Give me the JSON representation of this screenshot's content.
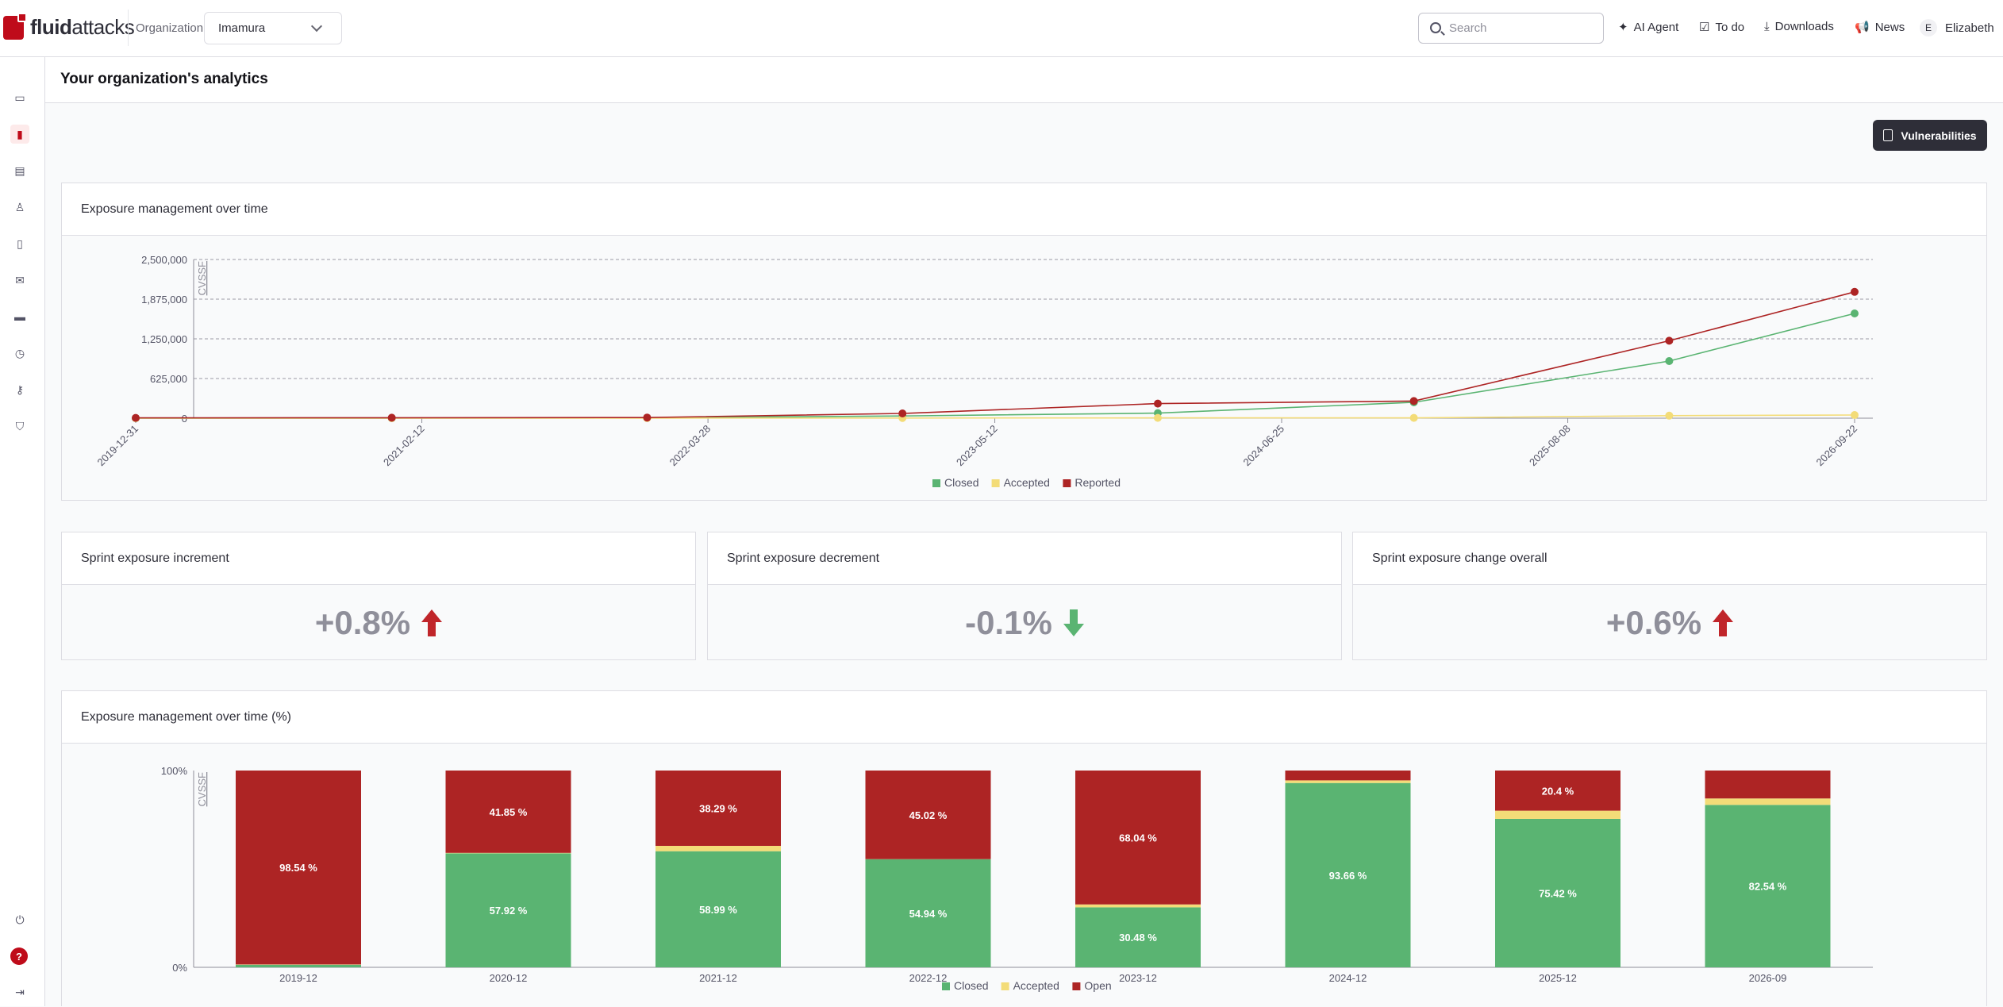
{
  "brand": {
    "name_bold": "fluid",
    "name_rest": "attacks"
  },
  "top": {
    "org_label": "Organization",
    "org_value": "Imamura",
    "search_placeholder": "Search",
    "nav": [
      "AI Agent",
      "To do",
      "Downloads",
      "News"
    ],
    "user_initial": "E",
    "user_name": "Elizabeth"
  },
  "sidebar": {
    "icons": [
      "folder-icon",
      "chart-icon",
      "briefcase-icon",
      "user-plus-icon",
      "file-check-icon",
      "mail-icon",
      "credit-card-icon",
      "clock-icon",
      "key-icon",
      "shield-icon"
    ],
    "active": "chart-icon"
  },
  "page": {
    "title": "Your organization's analytics",
    "export_button": "Vulnerabilities"
  },
  "cards": {
    "line_title": "Exposure management over time",
    "inc_title": "Sprint exposure increment",
    "inc_value": "+0.8%",
    "dec_title": "Sprint exposure decrement",
    "dec_value": "-0.1%",
    "overall_title": "Sprint exposure change overall",
    "overall_value": "+0.6%",
    "bar_title": "Exposure management over time (%)"
  },
  "colors": {
    "closed": "#5ab472",
    "accepted": "#f3dc78",
    "reported": "#ad2424",
    "accent": "#bf0b1a"
  },
  "chart_data": [
    {
      "type": "line",
      "ylabel": "CVSSF",
      "ylim": [
        0,
        2500000
      ],
      "y_ticks": [
        "2,500,000",
        "1,875,000",
        "1,250,000",
        "625,000",
        "0"
      ],
      "x_ticks": [
        "2019-12-31",
        "2021-02-12",
        "2022-03-28",
        "2023-05-12",
        "2024-06-25",
        "2025-08-08",
        "2026-09-22"
      ],
      "x": [
        "2019-12-31",
        "2020-12-31",
        "2021-12-31",
        "2022-12-31",
        "2023-12-31",
        "2024-12-31",
        "2025-12-31",
        "2026-09-22"
      ],
      "series": [
        {
          "name": "Closed",
          "values": [
            0,
            1000,
            5000,
            35000,
            80000,
            250000,
            900000,
            1650000
          ]
        },
        {
          "name": "Accepted",
          "values": [
            0,
            0,
            1000,
            3000,
            5000,
            5000,
            40000,
            50000
          ]
        },
        {
          "name": "Reported",
          "values": [
            5000,
            8000,
            10000,
            75000,
            230000,
            270000,
            1220000,
            1990000
          ]
        }
      ],
      "legend": [
        "Closed",
        "Accepted",
        "Reported"
      ],
      "legend_position": "bottom-center"
    },
    {
      "type": "bar",
      "stacked": true,
      "ylabel": "CVSSF",
      "y_ticks": [
        "100%",
        "0%"
      ],
      "categories": [
        "2019-12",
        "2020-12",
        "2021-12",
        "2022-12",
        "2023-12",
        "2024-12",
        "2025-12",
        "2026-09"
      ],
      "series": [
        {
          "name": "Closed",
          "values": [
            1.3,
            57.92,
            58.99,
            54.94,
            30.48,
            93.66,
            75.42,
            82.54
          ]
        },
        {
          "name": "Accepted",
          "values": [
            0.16,
            0.23,
            2.72,
            0.04,
            1.48,
            1.34,
            4.18,
            3.26
          ]
        },
        {
          "name": "Open",
          "values": [
            98.54,
            41.85,
            38.29,
            45.02,
            68.04,
            5.0,
            20.4,
            14.2
          ]
        }
      ],
      "labels": {
        "Closed": [
          "",
          "57.92 %",
          "58.99 %",
          "54.94 %",
          "30.48 %",
          "93.66 %",
          "75.42 %",
          "82.54 %"
        ],
        "Open": [
          "98.54 %",
          "41.85 %",
          "38.29 %",
          "45.02 %",
          "68.04 %",
          "",
          "20.4 %",
          ""
        ]
      },
      "legend": [
        "Closed",
        "Accepted",
        "Open"
      ],
      "legend_position": "bottom-center"
    }
  ]
}
